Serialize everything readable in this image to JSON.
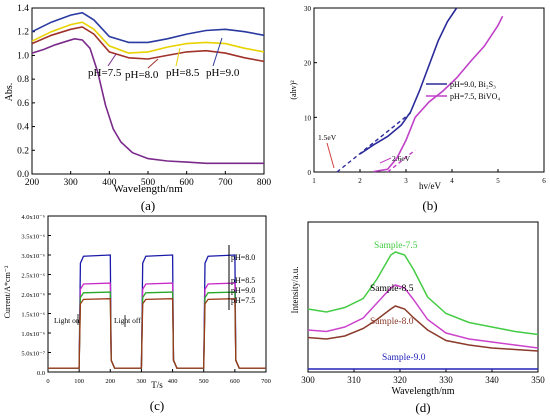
{
  "chart_data": [
    {
      "panel_label": "(a)",
      "type": "line",
      "xlabel": "Wavelength/nm",
      "ylabel": "Abs.",
      "xlim": [
        200,
        800
      ],
      "ylim": [
        0,
        1.4
      ],
      "x_ticks": [
        200,
        300,
        400,
        500,
        600,
        700,
        800
      ],
      "y_ticks": [
        0.0,
        0.2,
        0.4,
        0.6,
        0.8,
        1.0,
        1.2,
        1.4
      ],
      "tick_labels_x": [
        "200",
        "300",
        "400",
        "500",
        "600",
        "700",
        "800"
      ],
      "tick_labels_y": [
        "0.0",
        "0.2",
        "0.4",
        "0.6",
        "0.8",
        "1.0",
        "1.2",
        "1.4"
      ],
      "grid": false,
      "series": [
        {
          "name": "pH=7.5",
          "color": "#7a2a8a",
          "x": [
            200,
            230,
            260,
            290,
            310,
            330,
            350,
            370,
            390,
            410,
            430,
            460,
            500,
            550,
            600,
            650,
            700,
            750,
            800
          ],
          "y": [
            1.02,
            1.05,
            1.09,
            1.12,
            1.14,
            1.13,
            1.06,
            0.86,
            0.58,
            0.38,
            0.27,
            0.18,
            0.13,
            0.11,
            0.1,
            0.09,
            0.09,
            0.09,
            0.09
          ]
        },
        {
          "name": "pH=8.0",
          "color": "#a0322a",
          "x": [
            200,
            250,
            300,
            330,
            360,
            400,
            450,
            500,
            550,
            600,
            650,
            700,
            750,
            800
          ],
          "y": [
            1.1,
            1.17,
            1.22,
            1.24,
            1.18,
            1.03,
            0.98,
            0.97,
            1.0,
            1.03,
            1.04,
            1.02,
            0.98,
            0.95
          ]
        },
        {
          "name": "pH=8.5",
          "color": "#e8d200",
          "x": [
            200,
            250,
            300,
            330,
            360,
            400,
            450,
            500,
            550,
            600,
            650,
            700,
            750,
            800
          ],
          "y": [
            1.12,
            1.2,
            1.26,
            1.28,
            1.22,
            1.08,
            1.02,
            1.03,
            1.07,
            1.1,
            1.11,
            1.1,
            1.06,
            1.03
          ]
        },
        {
          "name": "pH=9.0",
          "color": "#2a3aa0",
          "x": [
            200,
            250,
            300,
            330,
            360,
            400,
            450,
            500,
            550,
            600,
            650,
            700,
            750,
            800
          ],
          "y": [
            1.2,
            1.28,
            1.34,
            1.36,
            1.3,
            1.16,
            1.11,
            1.11,
            1.14,
            1.18,
            1.21,
            1.22,
            1.2,
            1.17
          ]
        }
      ],
      "annotations": [
        "pH=7.5",
        "pH=8.0",
        "pH=8.5",
        "pH=9.0"
      ]
    },
    {
      "panel_label": "(b)",
      "type": "line",
      "xlabel": "hv/eV",
      "ylabel": "(ahv)²",
      "xlim": [
        1,
        6
      ],
      "ylim": [
        0,
        30
      ],
      "x_ticks": [
        1,
        2,
        3,
        4,
        5,
        6
      ],
      "y_ticks": [
        0,
        10,
        20,
        30
      ],
      "tick_labels_x": [
        "1",
        "2",
        "3",
        "4",
        "5",
        "6"
      ],
      "tick_labels_y": [
        "0",
        "10",
        "20",
        "30"
      ],
      "grid": false,
      "legend_position": "center-right",
      "series": [
        {
          "name": "pH=9.0, Bi₂S₃",
          "color": "#2a2a9a",
          "x": [
            2.0,
            2.3,
            2.6,
            2.9,
            3.1,
            3.3,
            3.5,
            3.7,
            3.9,
            4.1
          ],
          "y": [
            3.3,
            5.0,
            6.5,
            8.6,
            11.0,
            15.0,
            19.5,
            24.0,
            27.5,
            30.0
          ]
        },
        {
          "name": "pH=7.5, BiVO₄",
          "color": "#c040c8",
          "x": [
            2.3,
            2.6,
            2.8,
            3.0,
            3.2,
            3.5,
            3.8,
            4.1,
            4.4,
            4.7,
            5.0,
            5.1
          ],
          "y": [
            0.1,
            0.5,
            2.5,
            5.8,
            10.0,
            12.8,
            14.8,
            17.2,
            20.2,
            23.0,
            26.8,
            28.5
          ]
        }
      ],
      "fit_lines": [
        {
          "x": [
            1.5,
            3.1
          ],
          "y": [
            0,
            10.8
          ]
        },
        {
          "x": [
            2.6,
            3.2
          ],
          "y": [
            0,
            4.0
          ]
        }
      ],
      "annotations": [
        "1.5eV",
        "2.6eV"
      ]
    },
    {
      "panel_label": "(c)",
      "type": "line",
      "xlabel": "T/s",
      "ylabel": "Current/A*cm⁻²",
      "xlim": [
        0,
        700
      ],
      "ylim": [
        0,
        4e-06
      ],
      "x_ticks": [
        0,
        100,
        200,
        300,
        400,
        500,
        600,
        700
      ],
      "tick_labels_x": [
        "0",
        "100",
        "200",
        "300",
        "400",
        "500",
        "600",
        "700"
      ],
      "tick_labels_y": [
        "0.0",
        "5.0x10⁻⁷",
        "1.0x10⁻⁶",
        "1.5x10⁻⁶",
        "2.0x10⁻⁶",
        "2.5x10⁻⁶",
        "3.0x10⁻⁶",
        "3.5x10⁻⁶",
        "4.0x10⁻⁶"
      ],
      "grid": false,
      "on_off_periods": [
        [
          100,
          200
        ],
        [
          300,
          400
        ],
        [
          500,
          600
        ]
      ],
      "series": [
        {
          "name": "pH=8.0",
          "color": "#1a1aaa",
          "on_level": 3e-06,
          "dark_level": 1e-07
        },
        {
          "name": "pH=8.5",
          "color": "#c828c8",
          "on_level": 2.28e-06,
          "dark_level": 1e-07
        },
        {
          "name": "pH=9.0",
          "color": "#28a828",
          "on_level": 2.05e-06,
          "dark_level": 1e-07
        },
        {
          "name": "pH=7.5",
          "color": "#9a3a18",
          "on_level": 1.88e-06,
          "dark_level": 1e-07
        }
      ],
      "annotations": [
        "Light on",
        "Light off"
      ]
    },
    {
      "panel_label": "(d)",
      "type": "line",
      "xlabel": "Wavelength/nm",
      "ylabel": "Intensity/a.u.",
      "xlim": [
        300,
        350
      ],
      "ylim": [
        0,
        10
      ],
      "x_ticks": [
        300,
        310,
        320,
        330,
        340,
        350
      ],
      "tick_labels_x": [
        "300",
        "310",
        "320",
        "330",
        "340",
        "350"
      ],
      "grid": false,
      "series": [
        {
          "name": "Sample-7.5",
          "color": "#44cc44",
          "x": [
            300,
            304,
            308,
            312,
            315,
            318,
            319,
            321,
            323,
            326,
            330,
            335,
            340,
            345,
            350
          ],
          "y": [
            4.2,
            4.0,
            4.3,
            4.9,
            6.2,
            7.8,
            8.0,
            7.8,
            6.8,
            5.0,
            3.9,
            3.3,
            3.0,
            2.7,
            2.5
          ]
        },
        {
          "name": "Sample-8.5",
          "color": "#cc44cc",
          "x": [
            300,
            304,
            308,
            312,
            315,
            318,
            319,
            321,
            323,
            326,
            330,
            335,
            340,
            345,
            350
          ],
          "y": [
            2.8,
            2.7,
            3.0,
            3.6,
            4.6,
            5.6,
            5.8,
            5.6,
            4.8,
            3.5,
            2.6,
            2.2,
            2.0,
            1.8,
            1.6
          ]
        },
        {
          "name": "Sample-8.0",
          "color": "#8a3a2a",
          "x": [
            300,
            304,
            308,
            312,
            315,
            318,
            319,
            321,
            323,
            326,
            330,
            335,
            340,
            345,
            350
          ],
          "y": [
            2.3,
            2.2,
            2.4,
            2.9,
            3.5,
            4.2,
            4.4,
            4.2,
            3.6,
            2.8,
            2.1,
            1.8,
            1.6,
            1.5,
            1.4
          ]
        },
        {
          "name": "Sample-9.0",
          "color": "#2222bb",
          "x": [
            300,
            310,
            320,
            330,
            340,
            350
          ],
          "y": [
            0.2,
            0.2,
            0.2,
            0.2,
            0.2,
            0.2
          ]
        }
      ]
    }
  ]
}
